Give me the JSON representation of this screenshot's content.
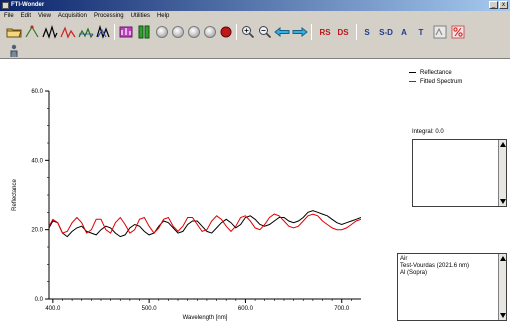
{
  "window": {
    "title": "FTI-Wonder",
    "min": "_",
    "close": "x"
  },
  "menu": [
    "File",
    "Edit",
    "View",
    "Acquisition",
    "Processing",
    "Utilities",
    "Help"
  ],
  "toolbar": {
    "rs": "RS",
    "ds": "DS",
    "s": "S",
    "sd": "S-D",
    "a": "A",
    "t": "T"
  },
  "legend": [
    {
      "name": "Reflectance",
      "color": "#000000"
    },
    {
      "name": "Fitted Spectrum",
      "color": "#e00000"
    }
  ],
  "integral": "Integral: 0.0",
  "layers": [
    "Air",
    "Test-Vourdas (2021.6 nm)",
    "Al (Sopra)"
  ],
  "chart_data": {
    "type": "line",
    "xlabel": "Wavelength [nm]",
    "ylabel": "Reflectance",
    "xlim": [
      396,
      720
    ],
    "ylim": [
      0,
      60
    ],
    "xticks": [
      "400.0",
      "500.0",
      "600.0",
      "700.0"
    ],
    "yticks": [
      "0.0",
      "20.0",
      "40.0",
      "60.0"
    ],
    "legend_position": "top-right",
    "series": [
      {
        "name": "Reflectance",
        "color": "#000000",
        "x": [
          396,
          400,
          405,
          410,
          415,
          420,
          425,
          430,
          435,
          440,
          445,
          450,
          455,
          460,
          465,
          470,
          475,
          480,
          485,
          490,
          495,
          500,
          505,
          510,
          515,
          520,
          525,
          530,
          535,
          540,
          545,
          550,
          555,
          560,
          565,
          570,
          575,
          580,
          585,
          590,
          595,
          600,
          605,
          610,
          615,
          620,
          625,
          630,
          635,
          640,
          645,
          650,
          655,
          660,
          665,
          670,
          675,
          680,
          685,
          690,
          695,
          700,
          705,
          710,
          715,
          720
        ],
        "y": [
          20.5,
          22.5,
          22.0,
          19.0,
          18.0,
          19.5,
          20.5,
          21.0,
          19.5,
          19.0,
          18.5,
          20.0,
          21.0,
          20.5,
          19.0,
          18.0,
          18.5,
          20.5,
          21.5,
          21.0,
          19.5,
          18.5,
          19.0,
          21.0,
          22.5,
          22.0,
          20.5,
          19.0,
          19.5,
          21.5,
          22.5,
          22.5,
          21.0,
          19.5,
          19.0,
          20.5,
          22.0,
          23.0,
          22.0,
          20.5,
          21.5,
          23.5,
          24.0,
          23.0,
          21.5,
          21.0,
          21.5,
          22.5,
          23.5,
          23.5,
          22.5,
          22.0,
          22.5,
          23.5,
          25.0,
          25.5,
          25.0,
          24.5,
          24.0,
          23.0,
          22.0,
          21.5,
          22.0,
          22.5,
          23.0,
          23.5
        ]
      },
      {
        "name": "Fitted Spectrum",
        "color": "#e00000",
        "x": [
          396,
          400,
          405,
          410,
          415,
          420,
          425,
          430,
          435,
          440,
          445,
          450,
          455,
          460,
          465,
          470,
          475,
          480,
          485,
          490,
          495,
          500,
          505,
          510,
          515,
          520,
          525,
          530,
          535,
          540,
          545,
          550,
          555,
          560,
          565,
          570,
          575,
          580,
          585,
          590,
          595,
          600,
          605,
          610,
          615,
          620,
          625,
          630,
          635,
          640,
          645,
          650,
          655,
          660,
          665,
          670,
          675,
          680,
          685,
          690,
          695,
          700,
          705,
          710,
          715,
          720
        ],
        "y": [
          21.0,
          23.0,
          22.0,
          19.0,
          19.5,
          22.0,
          23.5,
          22.0,
          19.0,
          20.0,
          23.0,
          23.0,
          20.0,
          19.0,
          22.0,
          23.5,
          21.5,
          19.0,
          20.0,
          23.0,
          23.5,
          21.0,
          19.0,
          20.5,
          23.0,
          23.5,
          21.0,
          19.5,
          21.0,
          23.5,
          23.5,
          21.5,
          19.5,
          20.0,
          22.5,
          24.0,
          23.0,
          21.0,
          19.5,
          21.0,
          23.5,
          24.0,
          22.5,
          20.5,
          20.0,
          21.5,
          23.5,
          24.5,
          24.0,
          22.5,
          21.0,
          20.5,
          21.0,
          22.5,
          24.0,
          24.5,
          24.0,
          22.5,
          21.5,
          20.5,
          20.0,
          20.0,
          20.5,
          21.5,
          22.5,
          23.0
        ]
      }
    ]
  }
}
